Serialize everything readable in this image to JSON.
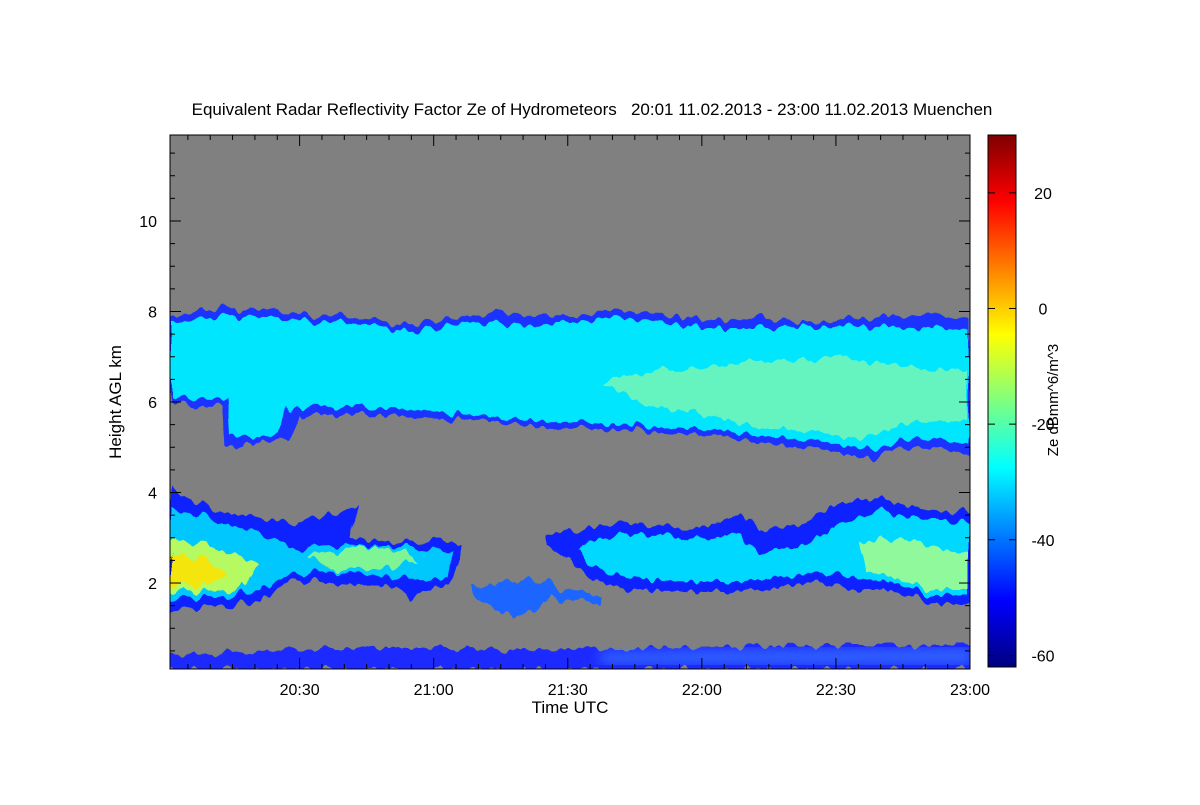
{
  "chart_data": {
    "type": "heatmap",
    "title": "Equivalent Radar Reflectivity Factor Ze of Hydrometeors   20:01 11.02.2013 - 23:00 11.02.2013 Muenchen",
    "xlabel": "Time UTC",
    "ylabel": "Height AGL km",
    "colorbar_label": "Ze dBmm^6/m^3",
    "x_range": [
      "20:01",
      "23:00"
    ],
    "x_ticks": [
      "20:30",
      "21:00",
      "21:30",
      "22:00",
      "22:30",
      "23:00"
    ],
    "y_range_km": [
      0.1,
      11.9
    ],
    "y_ticks": [
      2,
      4,
      6,
      8,
      10
    ],
    "colorbar_range": [
      -62,
      30
    ],
    "colorbar_ticks": [
      -60,
      -40,
      -20,
      0,
      20
    ],
    "colormap": [
      "#00007f",
      "#0000ff",
      "#007fff",
      "#00ffff",
      "#7fff7f",
      "#ffff00",
      "#ff7f00",
      "#ff0000",
      "#7f0000"
    ],
    "no_signal_color": "#808080",
    "grid": false,
    "features": [
      {
        "name": "Upper cloud layer",
        "time_start": "20:01",
        "time_end": "23:00",
        "base_km": [
          5.0,
          6.3
        ],
        "top_km": [
          7.2,
          8.1
        ],
        "ze_range_dbz": [
          -40,
          -15
        ]
      },
      {
        "name": "Lower cloud layer",
        "time_start": "20:01",
        "time_end": "21:08",
        "base_km": [
          1.4,
          2.6
        ],
        "top_km": [
          2.9,
          4.1
        ],
        "ze_range_dbz": [
          -40,
          -5
        ]
      },
      {
        "name": "Lower cloud layer",
        "time_start": "21:12",
        "time_end": "21:37",
        "base_km": [
          1.2,
          1.8
        ],
        "top_km": [
          1.9,
          2.1
        ],
        "ze_range_dbz": [
          -45,
          -30
        ]
      },
      {
        "name": "Lower cloud layer",
        "time_start": "21:35",
        "time_end": "23:00",
        "base_km": [
          1.5,
          2.2
        ],
        "top_km": [
          2.6,
          4.0
        ],
        "ze_range_dbz": [
          -40,
          -10
        ]
      },
      {
        "name": "Near-surface clutter",
        "time_start": "20:01",
        "time_end": "23:00",
        "base_km": [
          0.1,
          0.1
        ],
        "top_km": [
          0.4,
          0.6
        ],
        "ze_range_dbz": [
          -55,
          -40
        ]
      }
    ]
  }
}
